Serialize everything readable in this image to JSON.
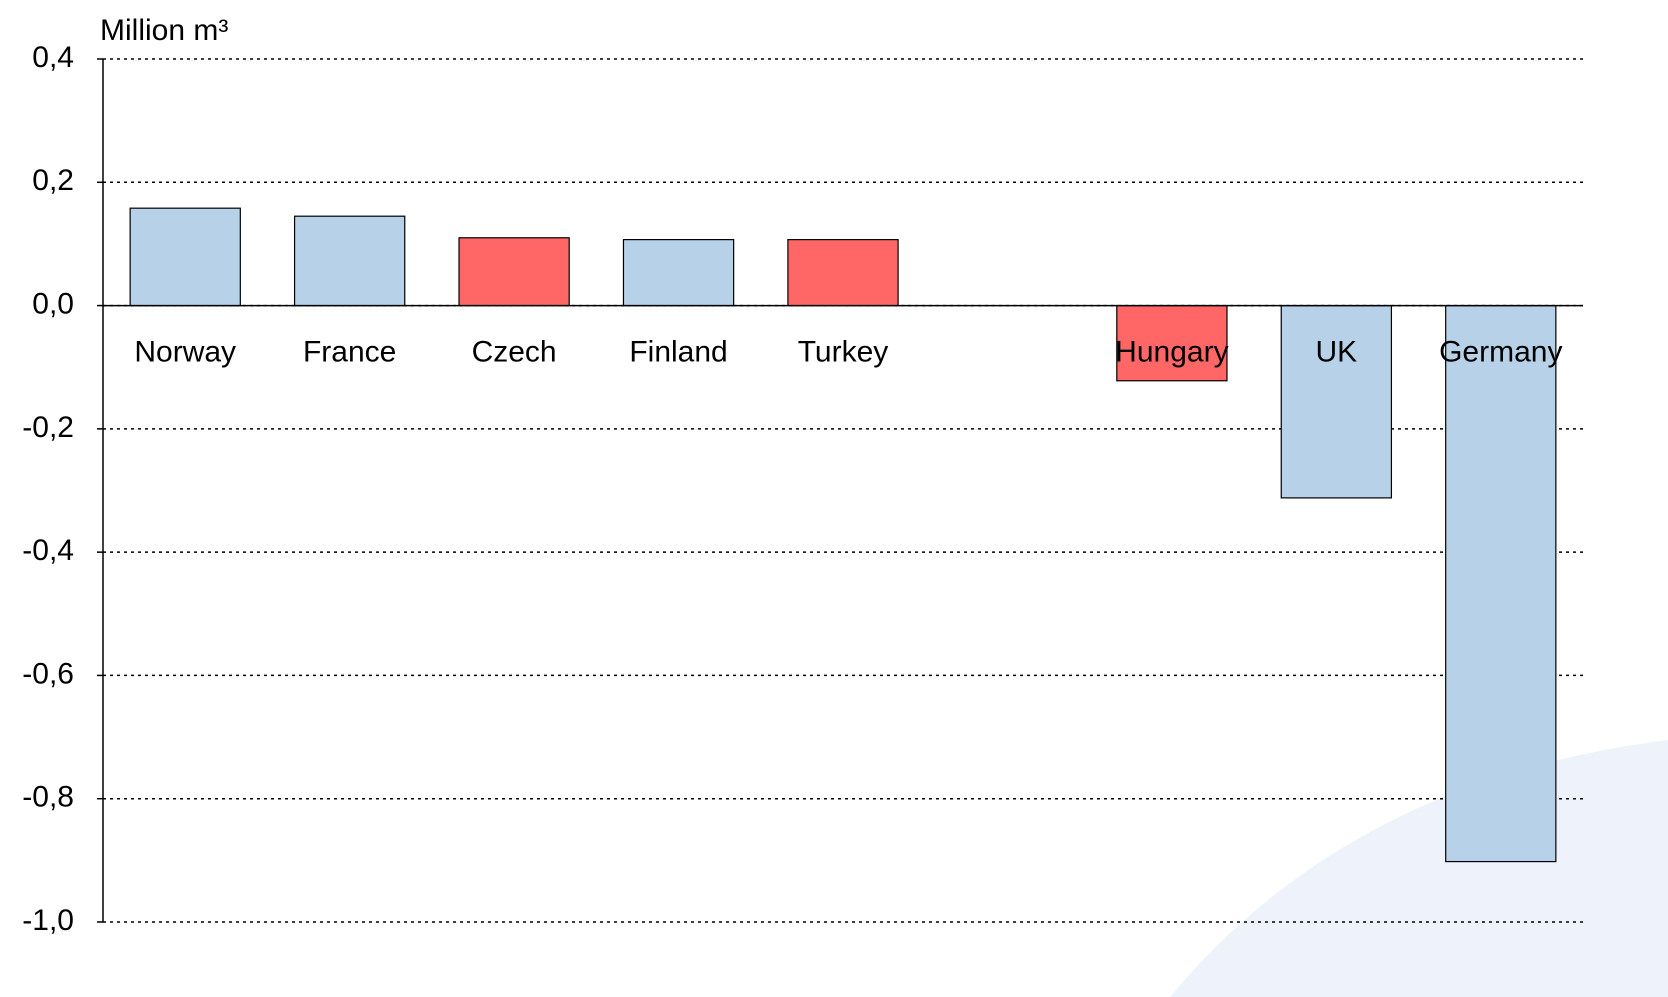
{
  "chart_data": {
    "type": "bar",
    "y_label": "Million m³",
    "categories": [
      "Norway",
      "France",
      "Czech",
      "Finland",
      "Turkey",
      null,
      "Hungary",
      "UK",
      "Germany"
    ],
    "values": [
      0.158,
      0.145,
      0.11,
      0.107,
      0.107,
      null,
      -0.122,
      -0.312,
      -0.902
    ],
    "colors": [
      "#b7d2e8",
      "#b7d2e8",
      "#ff6666",
      "#b7d2e8",
      "#ff6666",
      null,
      "#ff6666",
      "#b7d2e8",
      "#b7d2e8"
    ],
    "ylim": [
      -1.0,
      0.4
    ],
    "yticks": [
      {
        "value": -1.0,
        "label": "-1,0"
      },
      {
        "value": -0.8,
        "label": "-0,8"
      },
      {
        "value": -0.6,
        "label": "-0,6"
      },
      {
        "value": -0.4,
        "label": "-0,4"
      },
      {
        "value": -0.2,
        "label": "-0,2"
      },
      {
        "value": 0.0,
        "label": "0,0"
      },
      {
        "value": 0.2,
        "label": "0,2"
      },
      {
        "value": 0.4,
        "label": "0,4"
      }
    ],
    "grid": true
  }
}
